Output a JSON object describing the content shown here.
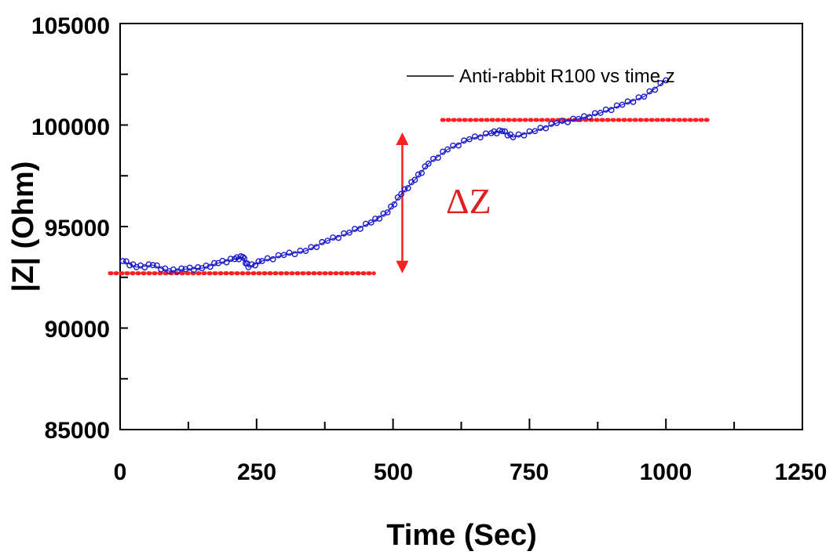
{
  "chart_data": {
    "type": "scatter",
    "xlabel": "Time (Sec)",
    "ylabel": "|Z| (Ohm)",
    "xlim": [
      0,
      1250
    ],
    "ylim": [
      85000,
      105000
    ],
    "x_ticks": [
      "0",
      "250",
      "500",
      "750",
      "1000",
      "1250"
    ],
    "y_ticks": [
      "85000",
      "90000",
      "95000",
      "100000",
      "105000"
    ],
    "legend": {
      "label": "Anti-rabbit R100 vs time.z",
      "placement": "top-right"
    },
    "series": [
      {
        "name": "Anti-rabbit R100 vs time.z",
        "color": "#1a1acc",
        "marker": "open-circle",
        "points": [
          [
            5,
            93300
          ],
          [
            30,
            93000
          ],
          [
            60,
            93100
          ],
          [
            90,
            92800
          ],
          [
            120,
            92900
          ],
          [
            150,
            92950
          ],
          [
            180,
            93200
          ],
          [
            210,
            93400
          ],
          [
            225,
            93500
          ],
          [
            235,
            93000
          ],
          [
            260,
            93300
          ],
          [
            300,
            93600
          ],
          [
            340,
            93800
          ],
          [
            380,
            94300
          ],
          [
            420,
            94700
          ],
          [
            460,
            95200
          ],
          [
            490,
            95700
          ],
          [
            515,
            96600
          ],
          [
            540,
            97300
          ],
          [
            565,
            98100
          ],
          [
            600,
            98800
          ],
          [
            640,
            99300
          ],
          [
            680,
            99600
          ],
          [
            700,
            99700
          ],
          [
            720,
            99400
          ],
          [
            760,
            99700
          ],
          [
            800,
            100100
          ],
          [
            840,
            100300
          ],
          [
            880,
            100600
          ],
          [
            920,
            101000
          ],
          [
            960,
            101400
          ],
          [
            1000,
            102200
          ]
        ]
      }
    ],
    "annotations": {
      "baseline": {
        "y": 92700,
        "x_range": [
          0,
          465
        ],
        "color": "#ff2020",
        "style": "dotted"
      },
      "plateau": {
        "y": 100250,
        "x_range": [
          590,
          1080
        ],
        "color": "#ff2020",
        "style": "dotted"
      },
      "delta_arrow": {
        "x": 517,
        "y_range": [
          92700,
          100250
        ],
        "color": "#ff2020"
      },
      "delta_label": "ΔZ"
    }
  }
}
